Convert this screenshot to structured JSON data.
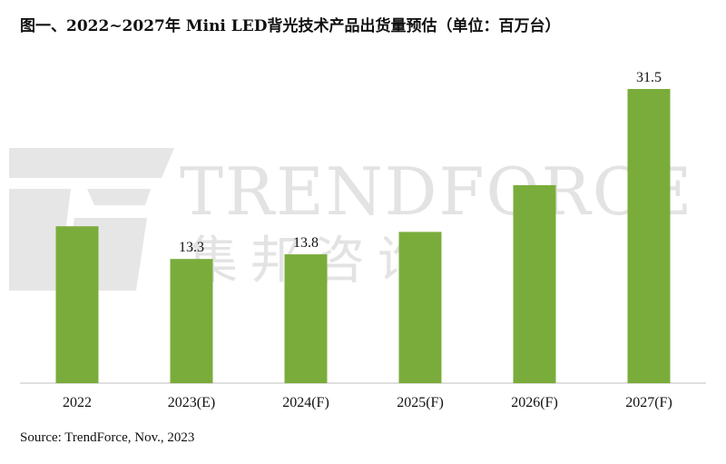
{
  "title": "图一、2022~2027年 Mini LED背光技术产品出货量预估（单位：百万台）",
  "source": "Source: TrendForce, Nov., 2023",
  "watermark": {
    "logo_text": "TRENDFORCE",
    "logo_cn": "集邦咨询"
  },
  "colors": {
    "bar": "#7aac3b",
    "axis": "#bfbfbf",
    "text": "#111111",
    "watermark": "#e3e3e3"
  },
  "chart_data": {
    "type": "bar",
    "title": "图一、2022~2027年 Mini LED背光技术产品出货量预估（单位：百万台）",
    "categories": [
      "2022",
      "2023(E)",
      "2024(F)",
      "2025(F)",
      "2026(F)",
      "2027(F)"
    ],
    "values": [
      16.8,
      13.3,
      13.8,
      16.2,
      21.2,
      31.5
    ],
    "data_labels": [
      "",
      "13.3",
      "13.8",
      "",
      "",
      "31.5"
    ],
    "xlabel": "",
    "ylabel": "",
    "ylim": [
      0,
      34
    ],
    "grid": false,
    "legend": "none"
  }
}
